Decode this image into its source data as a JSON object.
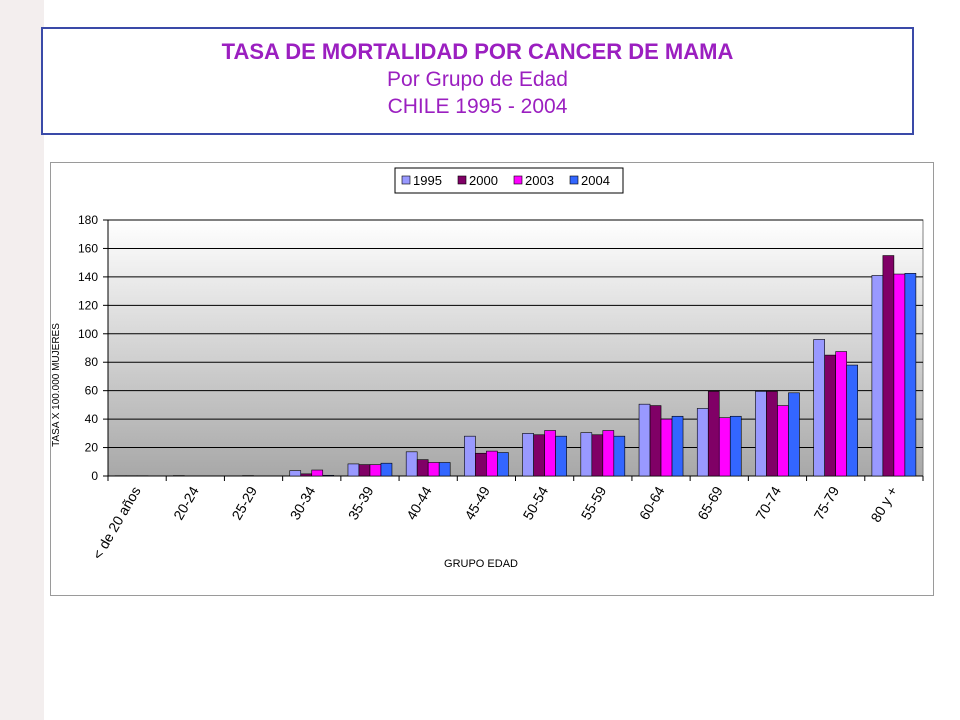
{
  "header": {
    "title": "TASA DE MORTALIDAD POR CANCER DE MAMA",
    "subtitle": "Por Grupo de Edad",
    "subtitle2": "CHILE 1995 - 2004"
  },
  "colors": {
    "title": "#9b1fc0",
    "series": [
      "#9999ff",
      "#800066",
      "#ff00ff",
      "#3366ff"
    ]
  },
  "chart_data": {
    "type": "bar",
    "xlabel": "GRUPO EDAD",
    "ylabel": "TASA X 100.000 MUJERES",
    "ylim": [
      0,
      180
    ],
    "yticks": [
      0,
      20,
      40,
      60,
      80,
      100,
      120,
      140,
      160,
      180
    ],
    "grid": true,
    "legend": "top",
    "categories": [
      "< de 20 años",
      "20-24",
      "25-29",
      "30-34",
      "35-39",
      "40-44",
      "45-49",
      "50-54",
      "55-59",
      "60-64",
      "65-69",
      "70-74",
      "75-79",
      "80 y +"
    ],
    "series": [
      {
        "name": "1995",
        "values": [
          0.2,
          0.3,
          0,
          3.8,
          8.5,
          17,
          28,
          30,
          30.5,
          50.5,
          47.5,
          59.5,
          96,
          141
        ]
      },
      {
        "name": "2000",
        "values": [
          0.2,
          0,
          0.3,
          1.5,
          8,
          11.5,
          16,
          29,
          29,
          49.5,
          59.5,
          59.5,
          85,
          155
        ]
      },
      {
        "name": "2003",
        "values": [
          0.2,
          0,
          0,
          4.2,
          8,
          9.5,
          17.5,
          32,
          32,
          40,
          41,
          49.5,
          87.5,
          142
        ]
      },
      {
        "name": "2004",
        "values": [
          0,
          0,
          0,
          0.5,
          9,
          9.5,
          16.5,
          28,
          28,
          42,
          42,
          58.5,
          78,
          142.5
        ]
      }
    ]
  }
}
